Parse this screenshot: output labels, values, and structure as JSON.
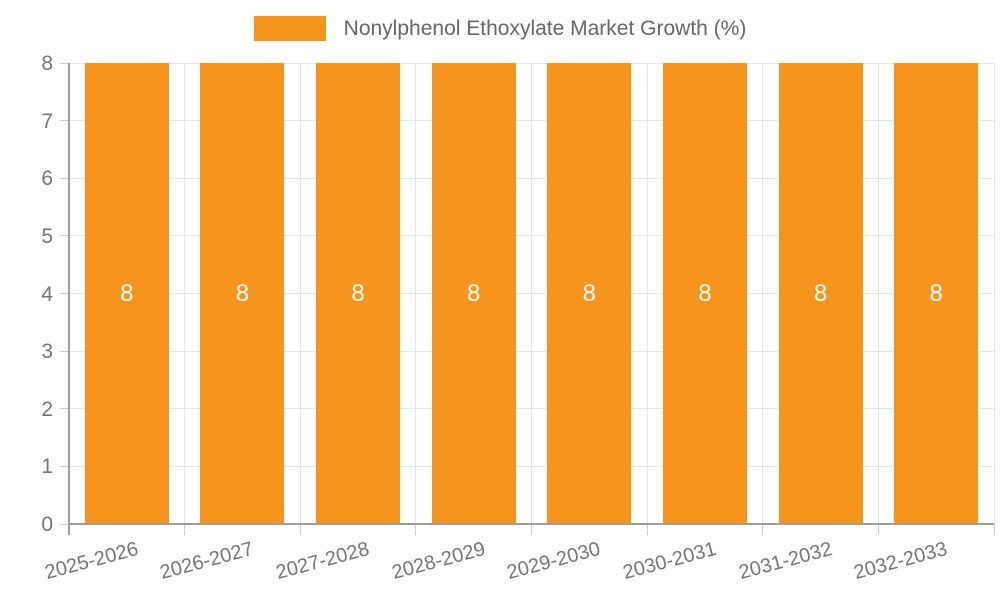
{
  "legend": {
    "label": "Nonylphenol Ethoxylate Market Growth (%)"
  },
  "chart_data": {
    "type": "bar",
    "title": "Nonylphenol Ethoxylate Market Growth (%)",
    "categories": [
      "2025-2026",
      "2026-2027",
      "2027-2028",
      "2028-2029",
      "2029-2030",
      "2030-2031",
      "2031-2032",
      "2032-2033"
    ],
    "series": [
      {
        "name": "Nonylphenol Ethoxylate Market Growth (%)",
        "values": [
          8,
          8,
          8,
          8,
          8,
          8,
          8,
          8
        ]
      }
    ],
    "values": [
      8,
      8,
      8,
      8,
      8,
      8,
      8,
      8
    ],
    "bar_value_labels": [
      "8",
      "8",
      "8",
      "8",
      "8",
      "8",
      "8",
      "8"
    ],
    "xlabel": "",
    "ylabel": "",
    "ylim": [
      0,
      8
    ],
    "yticks": [
      0,
      1,
      2,
      3,
      4,
      5,
      6,
      7,
      8
    ],
    "grid": true,
    "legend_position": "top",
    "colors": {
      "bar": "#F7941E",
      "bar_label": "#FFFFFF",
      "gridline": "#E6E6E6",
      "axis": "#9E9E9E",
      "tick_mark": "#CCCCCC",
      "tick_label": "#757575",
      "legend_text": "#666666",
      "background": "#FFFFFF"
    }
  }
}
